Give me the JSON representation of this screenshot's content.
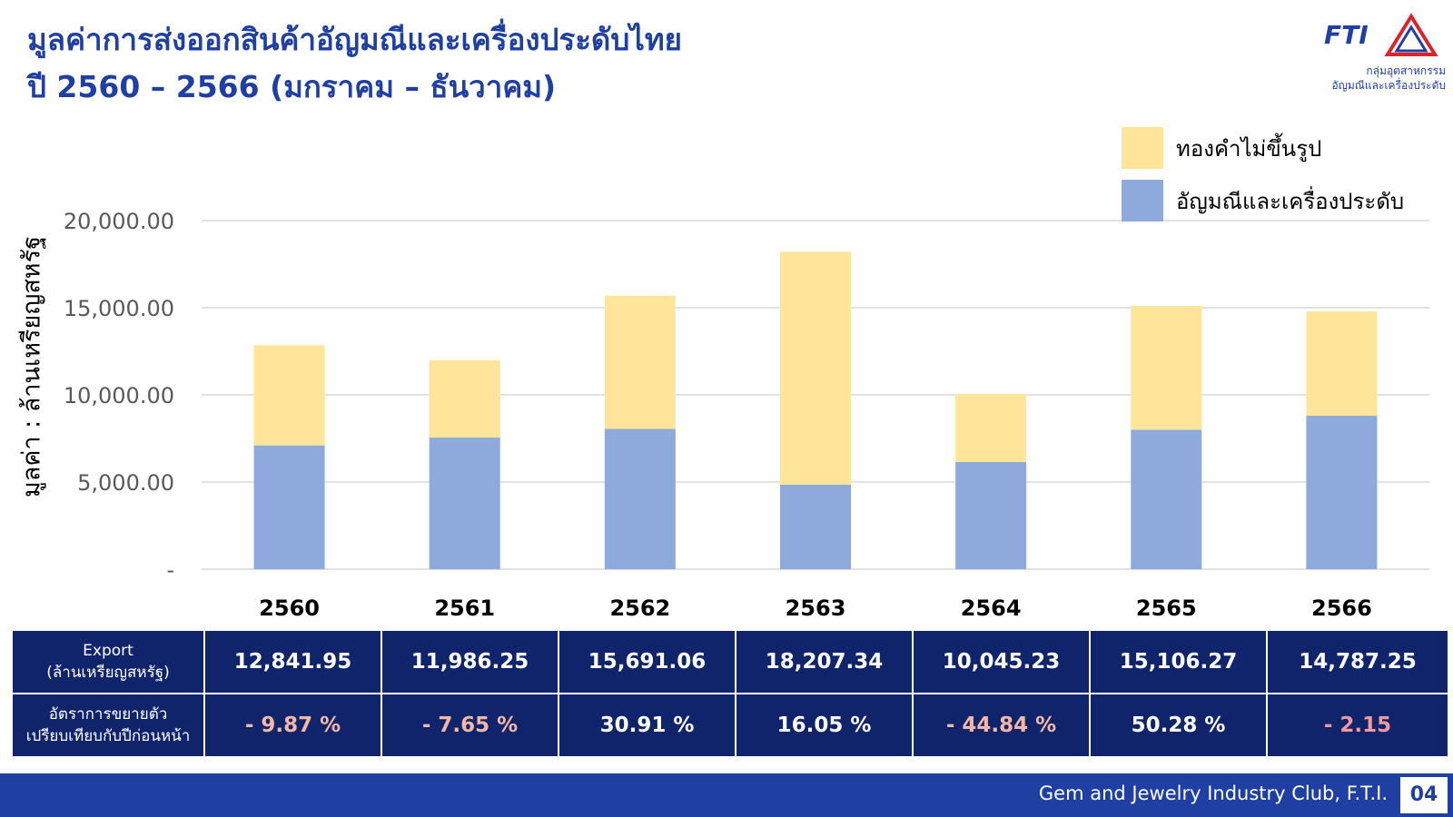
{
  "header": {
    "title_line1": "มูลค่าการส่งออกสินค้าอัญมณีและเครื่องประดับไทย",
    "title_line2": "ปี 2560 – 2566 (มกราคม – ธันวาคม)"
  },
  "logo": {
    "mark": "FTI",
    "line1": "กลุ่มอุตสาหกรรม",
    "line2": "อัญมณีและเครื่องประดับ",
    "icon": "fti-triangle-logo"
  },
  "chart_data": {
    "type": "bar",
    "stacked": true,
    "categories": [
      "2560",
      "2561",
      "2562",
      "2563",
      "2564",
      "2565",
      "2566"
    ],
    "series": [
      {
        "name": "อัญมณีและเครื่องประดับ",
        "color": "#8ea9db",
        "values": [
          7100,
          7550,
          8050,
          4850,
          6150,
          8000,
          8800
        ]
      },
      {
        "name": "ทองคำไม่ขึ้นรูป",
        "color": "#fee599",
        "values": [
          5741.95,
          4436.25,
          7641.06,
          13357.34,
          3895.23,
          7106.27,
          5987.25
        ]
      }
    ],
    "ylabel": "มูลค่า : ล้านเหรียญสหรัฐ",
    "ylim": [
      0,
      20000
    ],
    "yticks": [
      0,
      5000,
      10000,
      15000,
      20000
    ],
    "ytick_labels": [
      "-",
      "5,000.00",
      "10,000.00",
      "15,000.00",
      "20,000.00"
    ],
    "grid": true,
    "legend_position": "top-right",
    "legend_order": [
      "ทองคำไม่ขึ้นรูป",
      "อัญมณีและเครื่องประดับ"
    ]
  },
  "table": {
    "row1_label_line1": "Export",
    "row1_label_line2": "(ล้านเหรียญสหรัฐ)",
    "export_values": [
      "12,841.95",
      "11,986.25",
      "15,691.06",
      "18,207.34",
      "10,045.23",
      "15,106.27",
      "14,787.25"
    ],
    "row2_label_line1": "อัตราการขยายตัว",
    "row2_label_line2": "เปรียบเทียบกับปีก่อนหน้า",
    "growth_values": [
      "- 9.87 %",
      "- 7.65 %",
      "30.91 %",
      "16.05 %",
      "- 44.84 %",
      "50.28 %",
      "- 2.15"
    ]
  },
  "footer": {
    "text": "Gem and Jewelry Industry Club, F.T.I.",
    "page_number": "04"
  },
  "colors": {
    "title_blue": "#1f3fa3",
    "table_navy": "#10246c",
    "bar_blue": "#8ea9db",
    "bar_yellow": "#fee599",
    "negative_text": "#f5b8a8"
  }
}
